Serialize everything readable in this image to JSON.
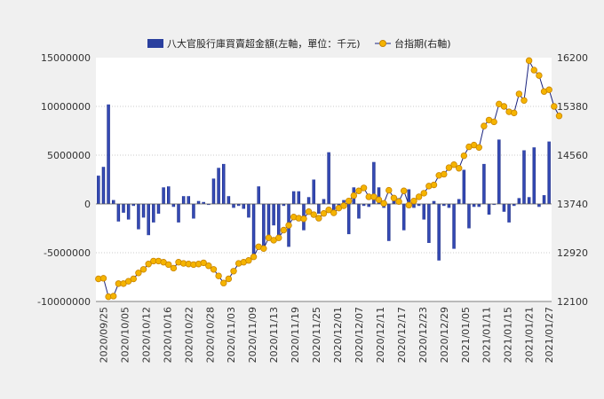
{
  "chart_data": {
    "type": "bar+line",
    "legend": [
      "八大官股行庫買賣超金額(左軸，單位：千元)",
      "台指期(右軸)"
    ],
    "left_axis": {
      "min": -10000000,
      "max": 15000000,
      "ticks": [
        15000000,
        10000000,
        5000000,
        0,
        -5000000,
        -10000000
      ]
    },
    "right_axis": {
      "min": 12100,
      "max": 16200,
      "ticks": [
        16200,
        15380,
        14560,
        13740,
        12920,
        12100
      ]
    },
    "date_labels": [
      "2020/09/25",
      "2020/10/05",
      "2020/10/12",
      "2020/10/16",
      "2020/10/22",
      "2020/10/28",
      "2020/11/03",
      "2020/11/09",
      "2020/11/13",
      "2020/11/19",
      "2020/11/25",
      "2020/12/01",
      "2020/12/07",
      "2020/12/11",
      "2020/12/17",
      "2020/12/23",
      "2020/12/29",
      "2021/01/05",
      "2021/01/11",
      "2021/01/15",
      "2021/01/21",
      "2021/01/27"
    ],
    "bars": [
      2900000,
      3800000,
      10200000,
      400000,
      -1800000,
      -900000,
      -1600000,
      -200000,
      -2600000,
      -1400000,
      -3200000,
      -1900000,
      -1000000,
      1700000,
      1800000,
      -300000,
      -1900000,
      800000,
      800000,
      -1500000,
      300000,
      200000,
      -100000,
      2600000,
      3700000,
      4100000,
      800000,
      -400000,
      -200000,
      -500000,
      -1400000,
      -5300000,
      1800000,
      -4400000,
      -3300000,
      -2200000,
      -3600000,
      -200000,
      -4400000,
      1300000,
      1300000,
      -2700000,
      700000,
      2500000,
      -1000000,
      500000,
      5300000,
      -1000000,
      -300000,
      400000,
      -3100000,
      1700000,
      -1500000,
      -200000,
      -300000,
      4300000,
      1700000,
      -400000,
      -3800000,
      500000,
      600000,
      -2700000,
      1500000,
      -400000,
      -200000,
      -1600000,
      -4000000,
      300000,
      -5800000,
      -200000,
      -400000,
      -4600000,
      500000,
      3500000,
      -2500000,
      -300000,
      -300000,
      4100000,
      -1100000,
      -100000,
      6600000,
      -800000,
      -1900000,
      -200000,
      600000,
      5500000,
      700000,
      5800000,
      -300000,
      900000,
      6400000
    ],
    "line": [
      12480,
      12490,
      12180,
      12190,
      12400,
      12400,
      12440,
      12480,
      12580,
      12640,
      12730,
      12780,
      12780,
      12760,
      12720,
      12660,
      12760,
      12740,
      12730,
      12720,
      12730,
      12750,
      12700,
      12640,
      12530,
      12410,
      12480,
      12610,
      12740,
      12760,
      12790,
      12850,
      13020,
      12990,
      13170,
      13130,
      13170,
      13300,
      13380,
      13520,
      13500,
      13490,
      13610,
      13560,
      13500,
      13580,
      13640,
      13590,
      13670,
      13710,
      13790,
      13880,
      13960,
      14010,
      13860,
      13860,
      13810,
      13750,
      13970,
      13840,
      13780,
      13960,
      13720,
      13790,
      13860,
      13920,
      14040,
      14060,
      14220,
      14240,
      14350,
      14400,
      14340,
      14550,
      14700,
      14730,
      14690,
      15050,
      15150,
      15120,
      15420,
      15380,
      15290,
      15270,
      15590,
      15480,
      16150,
      15990,
      15900,
      15630,
      15660,
      15380,
      15220
    ]
  }
}
